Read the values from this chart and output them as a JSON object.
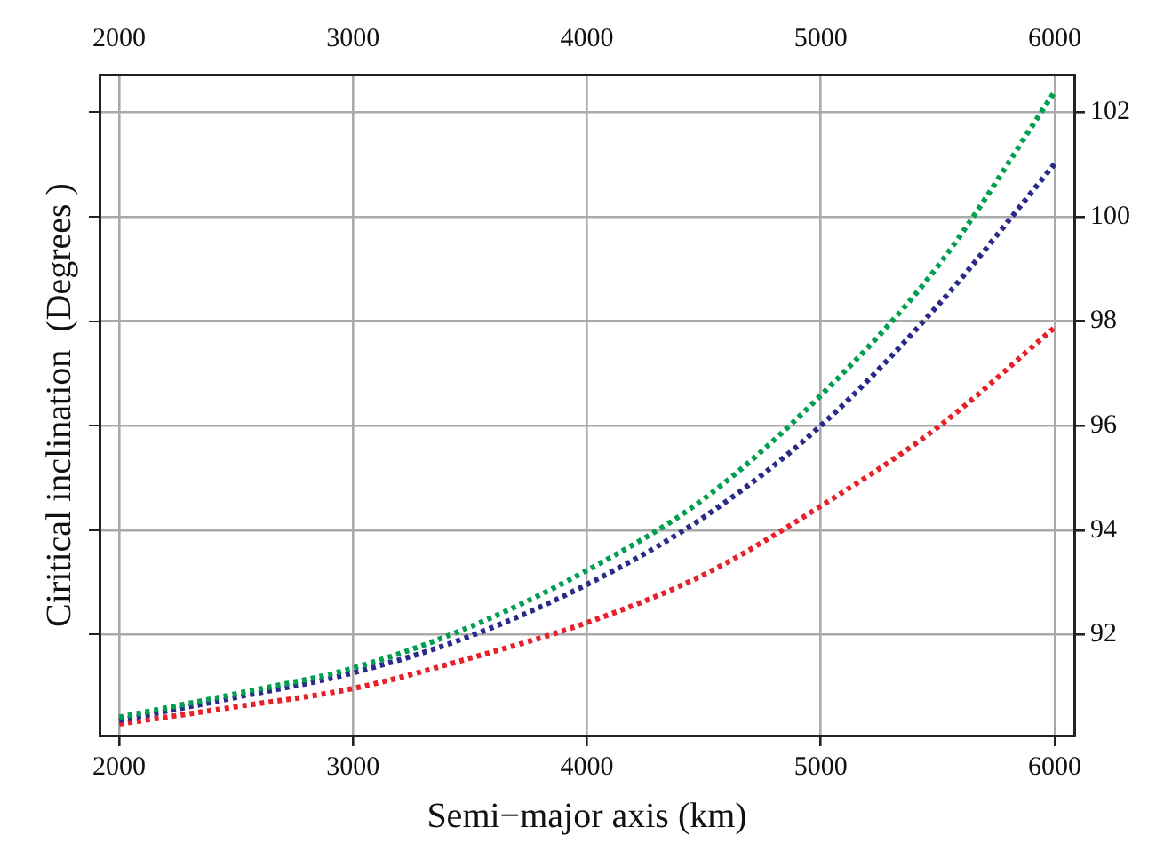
{
  "chart_data": {
    "type": "line",
    "xlabel": "Semi−major axis (km)",
    "ylabel": "Ciritical inclination  (Degrees )",
    "x": [
      2000,
      2500,
      3000,
      3500,
      4000,
      4500,
      5000,
      5500,
      6000
    ],
    "series": [
      {
        "color": "#00a050",
        "values": [
          90.42,
          90.87,
          91.36,
          92.15,
          93.23,
          94.6,
          96.58,
          99.05,
          102.39
        ]
      },
      {
        "color": "#2a2a8a",
        "values": [
          90.36,
          90.8,
          91.27,
          91.97,
          92.96,
          94.25,
          96.0,
          98.3,
          101.01
        ]
      },
      {
        "color": "#e8202a",
        "values": [
          90.29,
          90.62,
          90.97,
          91.55,
          92.23,
          93.15,
          94.46,
          95.97,
          97.88
        ]
      }
    ],
    "xlim": [
      1916,
      6084
    ],
    "xticks": [
      2000,
      3000,
      4000,
      5000,
      6000
    ],
    "x2lim": [
      1916,
      6084
    ],
    "x2ticks": [
      2000,
      3000,
      4000,
      5000,
      6000
    ],
    "ylim": [
      90.07,
      102.72
    ],
    "yticks": [
      92,
      94,
      96,
      98,
      100,
      102
    ],
    "grid": true,
    "legend": false,
    "marker": "none",
    "line_style": "dotted"
  }
}
